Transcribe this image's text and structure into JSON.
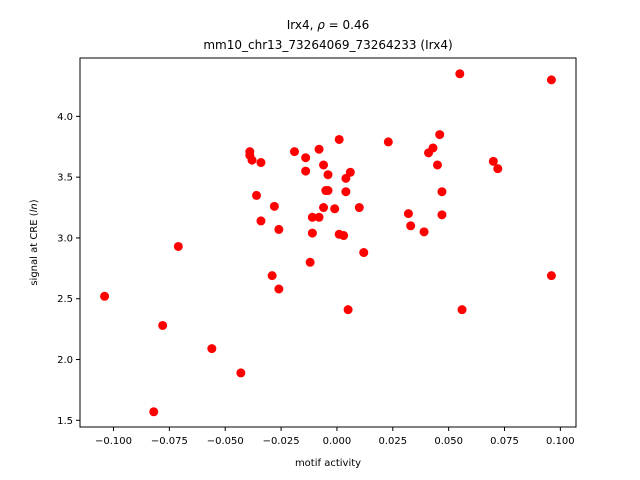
{
  "chart_data": {
    "type": "scatter",
    "title_prefix": "Irx4, ",
    "title_rho_symbol": "ρ",
    "title_rho_value": " = 0.46",
    "subtitle": "mm10_chr13_73264069_73264233 (Irx4)",
    "xlabel": "motif activity",
    "ylabel_prefix": "signal at CRE (",
    "ylabel_italic": "ln",
    "ylabel_suffix": ")",
    "xlim": [
      -0.115,
      0.107
    ],
    "ylim": [
      1.445,
      4.48
    ],
    "xticks": [
      -0.1,
      -0.075,
      -0.05,
      -0.025,
      0.0,
      0.025,
      0.05,
      0.075,
      0.1
    ],
    "xtick_labels": [
      "−0.100",
      "−0.075",
      "−0.050",
      "−0.025",
      "0.000",
      "0.025",
      "0.050",
      "0.075",
      "0.100"
    ],
    "yticks": [
      1.5,
      2.0,
      2.5,
      3.0,
      3.5,
      4.0
    ],
    "ytick_labels": [
      "1.5",
      "2.0",
      "2.5",
      "3.0",
      "3.5",
      "4.0"
    ],
    "grid": false,
    "marker_color": "#ff0000",
    "points": [
      {
        "x": -0.104,
        "y": 2.52
      },
      {
        "x": -0.082,
        "y": 1.57
      },
      {
        "x": -0.078,
        "y": 2.28
      },
      {
        "x": -0.071,
        "y": 2.93
      },
      {
        "x": -0.056,
        "y": 2.09
      },
      {
        "x": -0.043,
        "y": 1.89
      },
      {
        "x": -0.039,
        "y": 3.71
      },
      {
        "x": -0.039,
        "y": 3.68
      },
      {
        "x": -0.038,
        "y": 3.64
      },
      {
        "x": -0.036,
        "y": 3.35
      },
      {
        "x": -0.034,
        "y": 3.62
      },
      {
        "x": -0.034,
        "y": 3.14
      },
      {
        "x": -0.029,
        "y": 2.69
      },
      {
        "x": -0.028,
        "y": 3.26
      },
      {
        "x": -0.026,
        "y": 3.07
      },
      {
        "x": -0.026,
        "y": 2.58
      },
      {
        "x": -0.019,
        "y": 3.71
      },
      {
        "x": -0.014,
        "y": 3.66
      },
      {
        "x": -0.014,
        "y": 3.55
      },
      {
        "x": -0.012,
        "y": 2.8
      },
      {
        "x": -0.011,
        "y": 3.17
      },
      {
        "x": -0.011,
        "y": 3.04
      },
      {
        "x": -0.008,
        "y": 3.73
      },
      {
        "x": -0.008,
        "y": 3.17
      },
      {
        "x": -0.006,
        "y": 3.6
      },
      {
        "x": -0.006,
        "y": 3.25
      },
      {
        "x": -0.004,
        "y": 3.52
      },
      {
        "x": -0.004,
        "y": 3.39
      },
      {
        "x": -0.005,
        "y": 3.39
      },
      {
        "x": -0.001,
        "y": 3.24
      },
      {
        "x": 0.001,
        "y": 3.81
      },
      {
        "x": 0.001,
        "y": 3.03
      },
      {
        "x": 0.003,
        "y": 3.02
      },
      {
        "x": 0.004,
        "y": 3.49
      },
      {
        "x": 0.004,
        "y": 3.38
      },
      {
        "x": 0.005,
        "y": 2.41
      },
      {
        "x": 0.006,
        "y": 3.54
      },
      {
        "x": 0.01,
        "y": 3.25
      },
      {
        "x": 0.012,
        "y": 2.88
      },
      {
        "x": 0.023,
        "y": 3.79
      },
      {
        "x": 0.032,
        "y": 3.2
      },
      {
        "x": 0.033,
        "y": 3.1
      },
      {
        "x": 0.039,
        "y": 3.05
      },
      {
        "x": 0.041,
        "y": 3.7
      },
      {
        "x": 0.043,
        "y": 3.74
      },
      {
        "x": 0.045,
        "y": 3.6
      },
      {
        "x": 0.046,
        "y": 3.85
      },
      {
        "x": 0.047,
        "y": 3.38
      },
      {
        "x": 0.047,
        "y": 3.19
      },
      {
        "x": 0.055,
        "y": 4.35
      },
      {
        "x": 0.056,
        "y": 2.41
      },
      {
        "x": 0.07,
        "y": 3.63
      },
      {
        "x": 0.072,
        "y": 3.57
      },
      {
        "x": 0.096,
        "y": 4.3
      },
      {
        "x": 0.096,
        "y": 2.69
      }
    ]
  }
}
